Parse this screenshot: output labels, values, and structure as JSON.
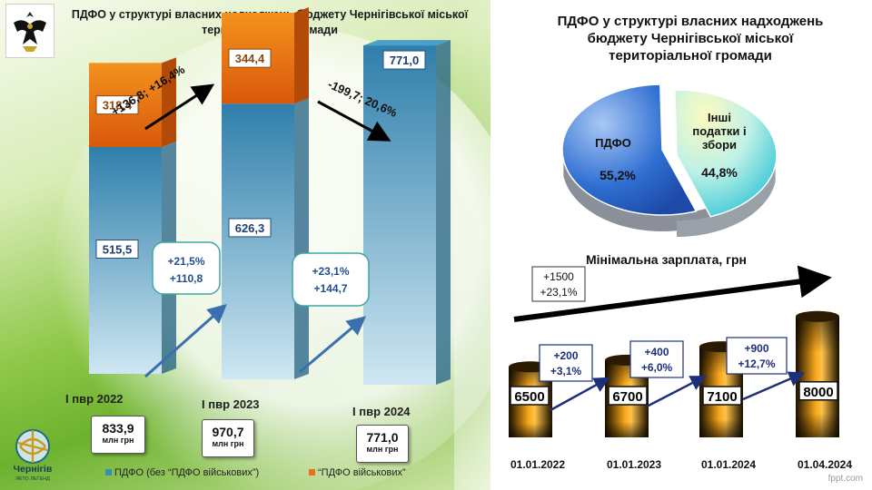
{
  "left_title": "ПДФО у структурі власних надходжень бюджету Чернігівської міської територіальної громади",
  "right_title": "ПДФО у структурі власних надходжень бюджету Чернігівської міської територіальної громади",
  "min_wage_title": "Мінімальна зарплата, грн",
  "branding": {
    "city_name": "Чернігів",
    "city_slogan": "ЯКТО ЛЕГЕНД",
    "watermark": "fppt.com"
  },
  "colors": {
    "pdfo": "#3a8fb8",
    "military": "#e8701a",
    "growth": "#8cc63f",
    "pie_pdfo": "#2f6fd1",
    "pie_other": "#7fe3e8",
    "wage_bar": "#f09a10",
    "arrow": "#1e2f7a"
  },
  "chart_data": [
    {
      "type": "bar",
      "title": "ПДФО у структурі власних надходжень бюджету Чернігівської міської територіальної громади",
      "categories": [
        "І пвр 2022",
        "І пвр 2023",
        "І пвр 2024"
      ],
      "series": [
        {
          "name": "ПДФО (без “ПДФО військових”)",
          "values": [
            515.5,
            626.3,
            771.0
          ],
          "labels": [
            "515,5",
            "626,3",
            "771,0"
          ]
        },
        {
          "name": "“ПДФО військових”",
          "values": [
            318.4,
            344.4,
            0
          ],
          "labels": [
            "318,4",
            "344,4",
            ""
          ]
        }
      ],
      "totals": [
        "833,9",
        "970,7",
        "771,0"
      ],
      "totals_unit": "млн грн",
      "total_changes": [
        "+136,8; +16,4%",
        "-199,7; 20,6%"
      ],
      "pdfo_changes": [
        {
          "line1": "+21,5%",
          "line2": "+110,8"
        },
        {
          "line1": "+23,1%",
          "line2": "+144,7"
        }
      ]
    },
    {
      "type": "pie",
      "labels": [
        "ПДФО",
        "Інші податки і збори"
      ],
      "label_lines": [
        [
          "ПДФО"
        ],
        [
          "Інші",
          "податки і",
          "збори"
        ]
      ],
      "values": [
        55.2,
        44.8
      ],
      "value_labels": [
        "55,2%",
        "44,8%"
      ]
    },
    {
      "type": "bar",
      "title": "Мінімальна зарплата, грн",
      "categories": [
        "01.01.2022",
        "01.01.2023",
        "01.01.2024",
        "01.04.2024"
      ],
      "values": [
        6500,
        6700,
        7100,
        8000
      ],
      "value_labels": [
        "6500",
        "6700",
        "7100",
        "8000"
      ],
      "step_changes": [
        {
          "line1": "+200",
          "line2": "+3,1%"
        },
        {
          "line1": "+400",
          "line2": "+6,0%"
        },
        {
          "line1": "+900",
          "line2": "+12,7%"
        }
      ],
      "total_change": {
        "line1": "+1500",
        "line2": "+23,1%"
      }
    }
  ]
}
